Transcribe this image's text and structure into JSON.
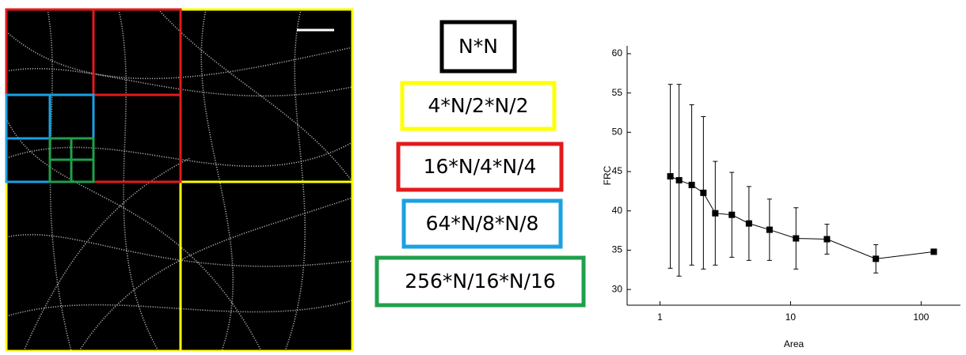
{
  "panel_labels": {
    "texts": [
      "N*N",
      "4*N/2*N/2",
      "16*N/4*N/4",
      "64*N/8*N/8",
      "256*N/16*N/16"
    ],
    "colors": [
      "#000000",
      "#ffff00",
      "#e31a1c",
      "#1ba1e2",
      "#1fa04a"
    ]
  },
  "chart_data": {
    "type": "line",
    "x_label": "Area",
    "y_label": "FRC",
    "x": [
      1.2,
      1.4,
      1.75,
      2.15,
      2.65,
      3.55,
      4.8,
      6.9,
      11,
      19,
      45,
      125
    ],
    "series": [
      {
        "color": "#000000",
        "values": [
          44.4,
          43.9,
          43.3,
          42.3,
          39.7,
          39.5,
          38.4,
          37.6,
          36.5,
          36.4,
          33.9,
          34.8
        ],
        "errors": [
          11.7,
          12.2,
          10.2,
          9.7,
          6.6,
          5.4,
          4.7,
          3.9,
          3.9,
          1.9,
          1.8,
          null
        ]
      }
    ],
    "xlim": [
      0.56,
      200
    ],
    "xticks": [
      1,
      10,
      100
    ],
    "x_log": true,
    "ylim": [
      28,
      61
    ],
    "yticks": [
      30,
      35,
      40,
      45,
      50,
      55,
      60
    ]
  }
}
